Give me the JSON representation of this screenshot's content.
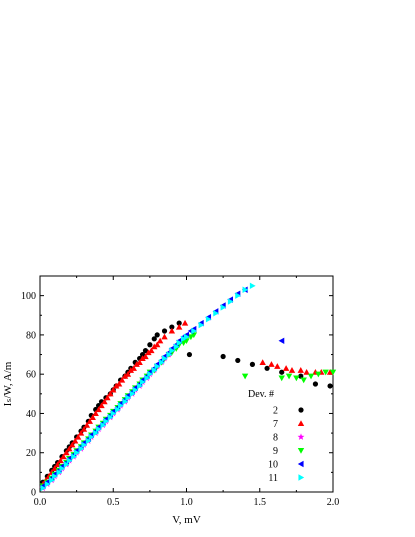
{
  "chart_data": {
    "type": "scatter",
    "xlabel": "V, mV",
    "ylabel": "Iₛ/W, A/m",
    "xlim": [
      0,
      2.0
    ],
    "ylim": [
      0,
      110
    ],
    "x_ticks": [
      0.0,
      0.5,
      1.0,
      1.5,
      2.0
    ],
    "x_tick_labels": [
      "0.0",
      "0.5",
      "1.0",
      "1.5",
      "2.0"
    ],
    "y_ticks": [
      0,
      20,
      40,
      60,
      80,
      100
    ],
    "y_tick_labels": [
      "0",
      "20",
      "40",
      "60",
      "80",
      "100"
    ],
    "grid": false,
    "legend": {
      "title": "Dev. #",
      "placement": "lower-right"
    },
    "series": [
      {
        "name": "2",
        "marker": "circle",
        "color": "#000000",
        "x": [
          0.02,
          0.05,
          0.08,
          0.1,
          0.12,
          0.15,
          0.18,
          0.2,
          0.22,
          0.25,
          0.28,
          0.3,
          0.33,
          0.35,
          0.38,
          0.4,
          0.42,
          0.45,
          0.48,
          0.5,
          0.52,
          0.55,
          0.58,
          0.6,
          0.62,
          0.65,
          0.68,
          0.7,
          0.72,
          0.75,
          0.78,
          0.8,
          0.85,
          0.9,
          0.95,
          1.02,
          1.25,
          1.35,
          1.45,
          1.55,
          1.65,
          1.78,
          1.88,
          1.98
        ],
        "y": [
          5,
          8,
          11,
          13,
          15,
          18,
          21,
          23,
          25,
          28,
          31,
          33,
          36,
          39,
          42,
          44,
          46,
          48,
          50,
          52,
          54,
          57,
          59,
          61,
          63,
          66,
          68,
          70,
          72,
          75,
          78,
          80,
          82,
          84,
          86,
          70,
          69,
          67,
          65,
          63,
          61,
          59,
          55,
          54
        ]
      },
      {
        "name": "7",
        "marker": "triangle-up",
        "color": "#ff0000",
        "x": [
          0.02,
          0.04,
          0.06,
          0.08,
          0.1,
          0.12,
          0.14,
          0.16,
          0.18,
          0.2,
          0.22,
          0.24,
          0.26,
          0.28,
          0.3,
          0.32,
          0.34,
          0.36,
          0.38,
          0.4,
          0.42,
          0.44,
          0.46,
          0.48,
          0.5,
          0.52,
          0.54,
          0.56,
          0.58,
          0.6,
          0.62,
          0.64,
          0.66,
          0.68,
          0.7,
          0.72,
          0.74,
          0.76,
          0.78,
          0.8,
          0.82,
          0.85,
          0.9,
          0.95,
          0.99,
          1.52,
          1.58,
          1.62,
          1.68,
          1.72,
          1.78,
          1.82,
          1.88,
          1.92,
          1.98
        ],
        "y": [
          4,
          6,
          8,
          10,
          12,
          14,
          16,
          18,
          20,
          22,
          24,
          26,
          28,
          30,
          32,
          34,
          36,
          38,
          40,
          42,
          44,
          46,
          48,
          50,
          52,
          54,
          55,
          57,
          59,
          60,
          62,
          63,
          65,
          66,
          68,
          69,
          71,
          72,
          74,
          75,
          77,
          79,
          82,
          84,
          86,
          66,
          65,
          64,
          63,
          62,
          62,
          61,
          61,
          61,
          61
        ]
      },
      {
        "name": "8",
        "marker": "star",
        "color": "#ff00ff",
        "x": [
          0.02,
          0.05,
          0.08,
          0.1,
          0.13,
          0.15,
          0.18,
          0.2,
          0.23,
          0.25,
          0.28,
          0.3,
          0.33,
          0.35,
          0.38,
          0.4,
          0.43,
          0.45,
          0.48,
          0.5,
          0.53,
          0.55,
          0.58,
          0.6,
          0.63,
          0.65,
          0.68,
          0.7,
          0.73,
          0.75,
          0.78,
          0.8,
          0.83,
          0.85,
          0.88,
          0.9,
          0.93
        ],
        "y": [
          2,
          4,
          6,
          8,
          10,
          12,
          14,
          16,
          18,
          20,
          22,
          24,
          26,
          28,
          30,
          32,
          34,
          36,
          38,
          40,
          42,
          44,
          46,
          48,
          50,
          52,
          54,
          56,
          58,
          60,
          62,
          64,
          66,
          68,
          70,
          72,
          74
        ]
      },
      {
        "name": "9",
        "marker": "triangle-down",
        "color": "#00ff00",
        "x": [
          0.02,
          0.05,
          0.08,
          0.1,
          0.13,
          0.15,
          0.18,
          0.2,
          0.23,
          0.25,
          0.28,
          0.3,
          0.33,
          0.35,
          0.38,
          0.4,
          0.43,
          0.45,
          0.48,
          0.5,
          0.53,
          0.55,
          0.58,
          0.6,
          0.63,
          0.65,
          0.68,
          0.7,
          0.73,
          0.75,
          0.78,
          0.8,
          0.83,
          0.85,
          0.88,
          0.9,
          0.93,
          0.95,
          0.98,
          1.0,
          1.03,
          1.05,
          1.4,
          1.65,
          1.7,
          1.75,
          1.8,
          1.85,
          1.9,
          1.95,
          2.0
        ],
        "y": [
          3,
          5,
          7,
          9,
          11,
          13,
          15,
          17,
          19,
          21,
          23,
          25,
          27,
          29,
          31,
          33,
          35,
          37,
          39,
          41,
          43,
          45,
          47,
          49,
          51,
          53,
          55,
          57,
          59,
          61,
          62,
          64,
          66,
          68,
          70,
          71,
          73,
          75,
          76,
          77,
          79,
          80,
          59,
          58,
          59,
          58,
          57,
          59,
          60,
          61,
          61
        ]
      },
      {
        "name": "10",
        "marker": "triangle-left",
        "color": "#0000ff",
        "x": [
          0.02,
          0.05,
          0.08,
          0.1,
          0.13,
          0.15,
          0.18,
          0.2,
          0.23,
          0.25,
          0.28,
          0.3,
          0.33,
          0.35,
          0.38,
          0.4,
          0.43,
          0.45,
          0.48,
          0.5,
          0.53,
          0.55,
          0.58,
          0.6,
          0.63,
          0.65,
          0.68,
          0.7,
          0.73,
          0.75,
          0.78,
          0.8,
          0.83,
          0.85,
          0.88,
          0.9,
          0.93,
          0.95,
          0.98,
          1.0,
          1.03,
          1.05,
          1.1,
          1.15,
          1.2,
          1.25,
          1.3,
          1.35,
          1.4,
          1.65
        ],
        "y": [
          3,
          5,
          7,
          9,
          11,
          13,
          15,
          17,
          19,
          21,
          23,
          25,
          27,
          29,
          31,
          33,
          35,
          37,
          39,
          41,
          43,
          45,
          47,
          49,
          51,
          53,
          55,
          57,
          59,
          61,
          63,
          65,
          67,
          69,
          71,
          73,
          75,
          77,
          79,
          80,
          82,
          83,
          86,
          89,
          92,
          95,
          98,
          101,
          103,
          77
        ]
      },
      {
        "name": "11",
        "marker": "triangle-right",
        "color": "#00ffff",
        "x": [
          0.02,
          0.05,
          0.08,
          0.1,
          0.13,
          0.15,
          0.18,
          0.2,
          0.23,
          0.25,
          0.28,
          0.3,
          0.33,
          0.35,
          0.38,
          0.4,
          0.43,
          0.45,
          0.48,
          0.5,
          0.53,
          0.55,
          0.58,
          0.6,
          0.63,
          0.65,
          0.68,
          0.7,
          0.73,
          0.75,
          0.78,
          0.8,
          0.83,
          0.85,
          0.88,
          0.9,
          0.93,
          0.95,
          0.98,
          1.0,
          1.05,
          1.1,
          1.15,
          1.2,
          1.25,
          1.3,
          1.35,
          1.4,
          1.45
        ],
        "y": [
          2,
          4,
          6,
          8,
          10,
          12,
          14,
          16,
          18,
          20,
          22,
          24,
          26,
          28,
          30,
          32,
          34,
          36,
          38,
          40,
          42,
          44,
          46,
          48,
          50,
          52,
          54,
          56,
          58,
          60,
          62,
          64,
          66,
          68,
          70,
          72,
          74,
          76,
          78,
          79,
          82,
          85,
          88,
          91,
          94,
          97,
          100,
          103,
          105
        ]
      }
    ]
  }
}
